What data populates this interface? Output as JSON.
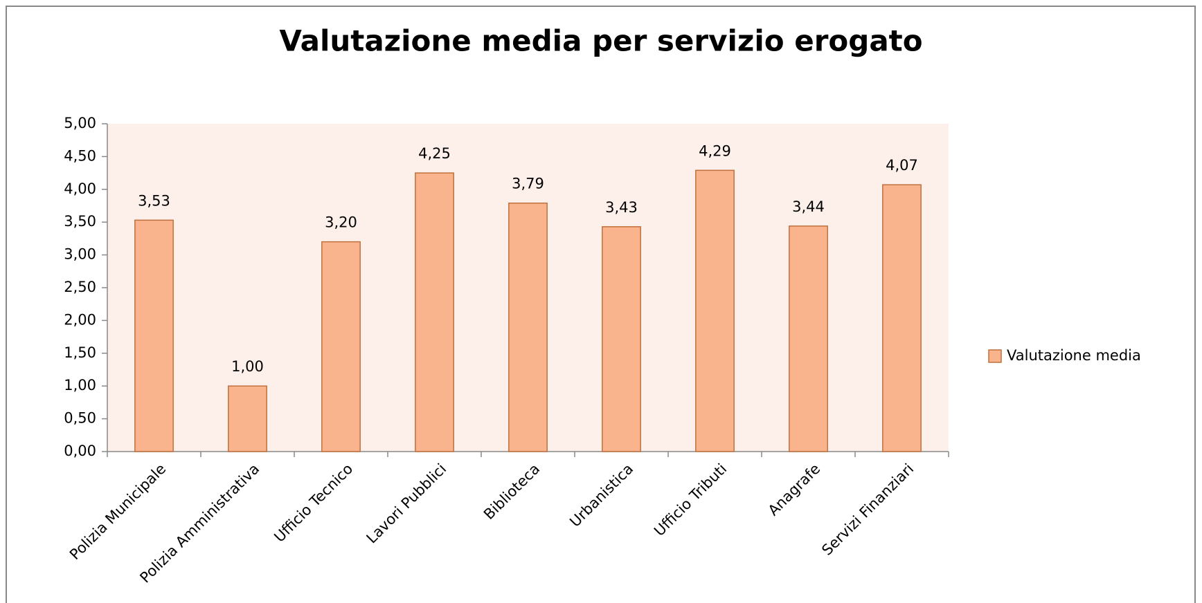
{
  "chart_data": {
    "type": "bar",
    "title": "Valutazione media per servizio erogato",
    "categories": [
      "Polizia Municipale",
      "Polizia Amministrativa",
      "Ufficio Tecnico",
      "Lavori Pubblici",
      "Biblioteca",
      "Urbanistica",
      "Ufficio Tributi",
      "Anagrafe",
      "Servizi Finanziari"
    ],
    "series": [
      {
        "name": "Valutazione media",
        "color": "#f9b48e",
        "values": [
          3.53,
          1.0,
          3.2,
          4.25,
          3.79,
          3.43,
          4.29,
          3.44,
          4.07
        ],
        "value_labels": [
          "3,53",
          "1,00",
          "3,20",
          "4,25",
          "3,79",
          "3,43",
          "4,29",
          "3,44",
          "4,07"
        ]
      }
    ],
    "ylim": [
      0,
      5
    ],
    "yticks": [
      {
        "value": 0,
        "label": "0,00"
      },
      {
        "value": 0.5,
        "label": "0,50"
      },
      {
        "value": 1,
        "label": "1,00"
      },
      {
        "value": 1.5,
        "label": "1,50"
      },
      {
        "value": 2,
        "label": "2,00"
      },
      {
        "value": 2.5,
        "label": "2,50"
      },
      {
        "value": 3,
        "label": "3,00"
      },
      {
        "value": 3.5,
        "label": "3,50"
      },
      {
        "value": 4,
        "label": "4,00"
      },
      {
        "value": 4.5,
        "label": "4,50"
      },
      {
        "value": 5,
        "label": "5,00"
      }
    ],
    "legend": "right"
  }
}
